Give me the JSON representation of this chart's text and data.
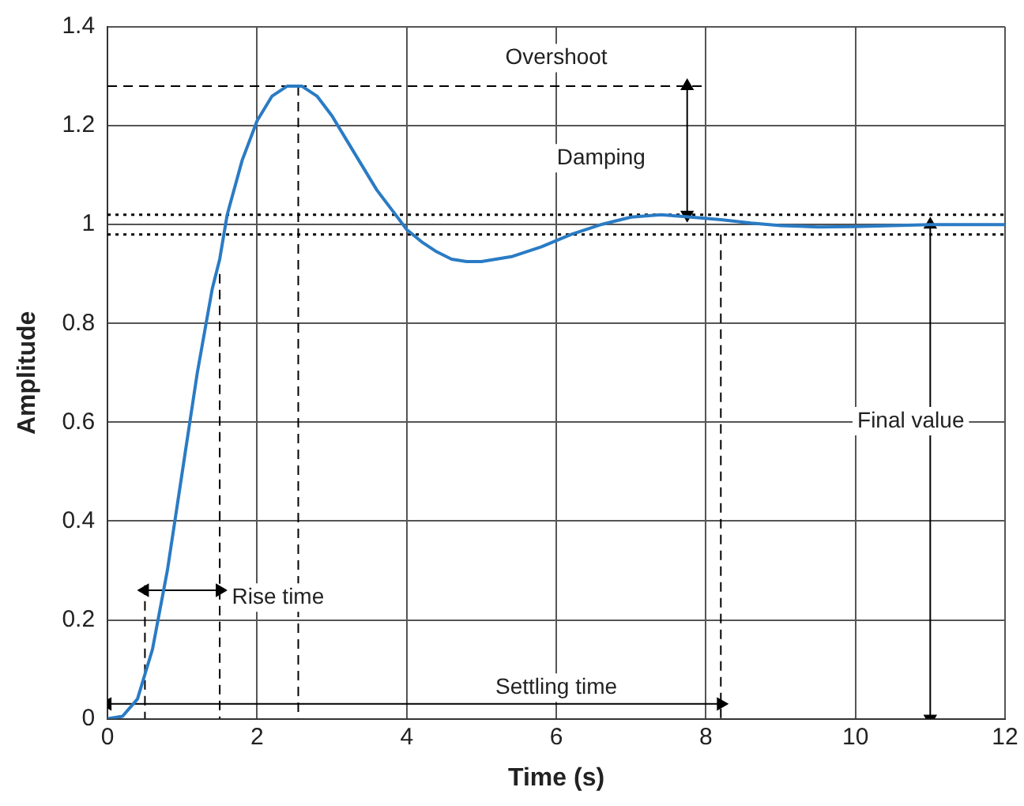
{
  "chart_data": {
    "type": "line",
    "xlabel": "Time (s)",
    "ylabel": "Amplitude",
    "xlim": [
      0,
      12
    ],
    "ylim": [
      0,
      1.4
    ],
    "xticks": [
      0,
      2,
      4,
      6,
      8,
      10,
      12
    ],
    "yticks": [
      0,
      0.2,
      0.4,
      0.6,
      0.8,
      1,
      1.2,
      1.4
    ],
    "grid": true,
    "legend": false,
    "series": [
      {
        "color": "#2a7bc4",
        "marker": "none",
        "line_style": "solid",
        "x": [
          0,
          0.2,
          0.4,
          0.6,
          0.8,
          1.0,
          1.2,
          1.4,
          1.5,
          1.6,
          1.8,
          2.0,
          2.2,
          2.4,
          2.6,
          2.8,
          3.0,
          3.2,
          3.4,
          3.6,
          3.8,
          4.0,
          4.2,
          4.4,
          4.6,
          4.8,
          5.0,
          5.4,
          5.8,
          6.2,
          6.6,
          7.0,
          7.4,
          7.8,
          8.2,
          8.6,
          9.0,
          9.5,
          10,
          10.5,
          11,
          12
        ],
        "values": [
          0,
          0.005,
          0.04,
          0.14,
          0.3,
          0.5,
          0.7,
          0.87,
          0.93,
          1.02,
          1.13,
          1.21,
          1.26,
          1.28,
          1.28,
          1.26,
          1.22,
          1.17,
          1.12,
          1.07,
          1.03,
          0.99,
          0.965,
          0.945,
          0.93,
          0.925,
          0.925,
          0.935,
          0.955,
          0.98,
          1.0,
          1.015,
          1.02,
          1.015,
          1.01,
          1.003,
          0.998,
          0.995,
          0.996,
          0.998,
          1.0,
          1.0
        ]
      },
      {
        "color": "#000000",
        "marker": "none",
        "line_style": "dashed",
        "x": [
          0,
          8
        ],
        "values": [
          1.28,
          1.28
        ]
      },
      {
        "color": "#000000",
        "marker": "none",
        "line_style": "dashed",
        "x": [
          2.55,
          2.55
        ],
        "values": [
          1.28,
          0
        ]
      },
      {
        "color": "#000000",
        "marker": "none",
        "line_style": "dashed",
        "x": [
          0.5,
          0.5
        ],
        "values": [
          0.27,
          0
        ]
      },
      {
        "color": "#000000",
        "marker": "none",
        "line_style": "dashed",
        "x": [
          1.5,
          1.5
        ],
        "values": [
          0.9,
          0
        ]
      },
      {
        "color": "#000000",
        "marker": "none",
        "line_style": "dashed",
        "x": [
          8.2,
          8.2
        ],
        "values": [
          0.98,
          0
        ]
      },
      {
        "color": "#000000",
        "marker": "triangle",
        "line_style": "solid",
        "x": [
          0.5,
          1.5
        ],
        "values": [
          0.26,
          0.26
        ]
      },
      {
        "color": "#000000",
        "marker": "triangle",
        "line_style": "solid",
        "x": [
          0,
          8.2
        ],
        "values": [
          0.03,
          0.03
        ]
      },
      {
        "color": "#000000",
        "marker": "triangle",
        "line_style": "solid",
        "x": [
          7.75,
          7.75
        ],
        "values": [
          1.28,
          1.02
        ]
      },
      {
        "color": "#000000",
        "marker": "triangle",
        "line_style": "solid",
        "x": [
          11,
          11
        ],
        "values": [
          0,
          1
        ]
      }
    ],
    "ref_lines": [
      {
        "axis": "y",
        "value": 1.02,
        "color": "#000000",
        "line_style": "dotted"
      },
      {
        "axis": "y",
        "value": 0.98,
        "color": "#000000",
        "line_style": "dotted"
      }
    ],
    "annotations": [
      "Overshoot",
      "Damping",
      "Final value",
      "Rise time",
      "Settling time"
    ]
  }
}
